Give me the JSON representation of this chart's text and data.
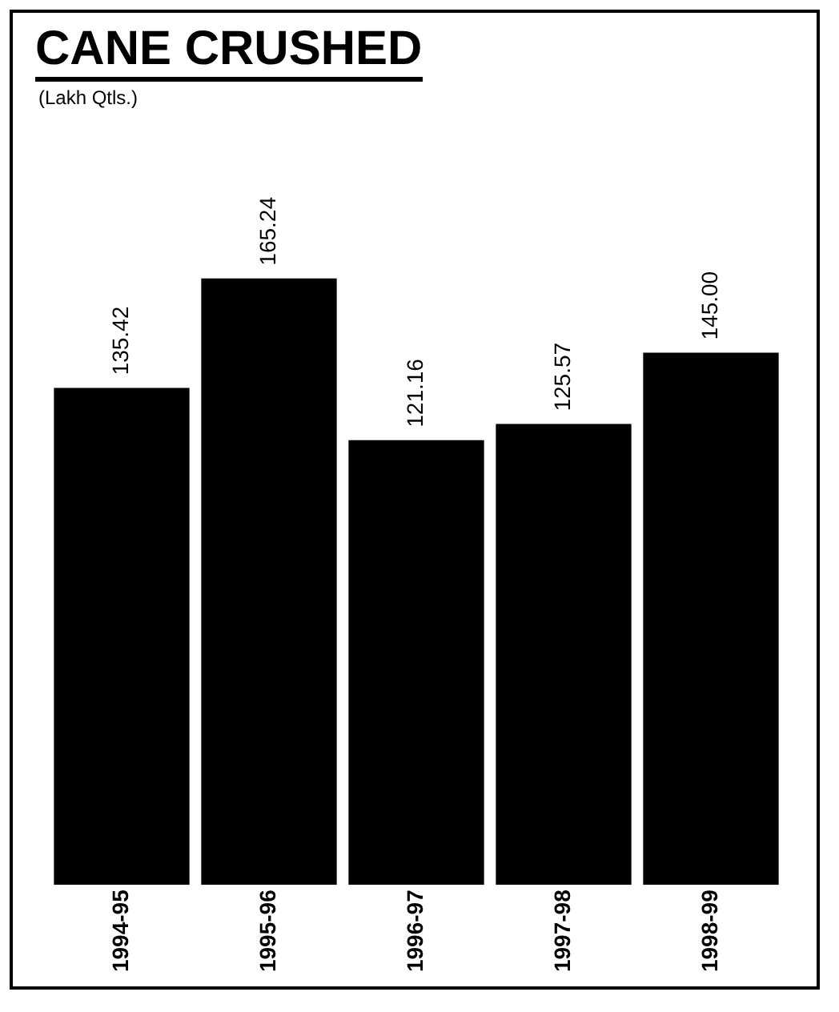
{
  "chart_data": {
    "type": "bar",
    "title": "CANE CRUSHED",
    "subtitle": "(Lakh Qtls.)",
    "categories": [
      "1994-95",
      "1995-96",
      "1996-97",
      "1997-98",
      "1998-99"
    ],
    "values": [
      135.42,
      165.24,
      121.16,
      125.57,
      145.0
    ],
    "value_labels": [
      "135.42",
      "165.24",
      "121.16",
      "125.57",
      "145.00"
    ],
    "color": "#000000",
    "data_labels": true,
    "grid": false,
    "legend": false
  }
}
